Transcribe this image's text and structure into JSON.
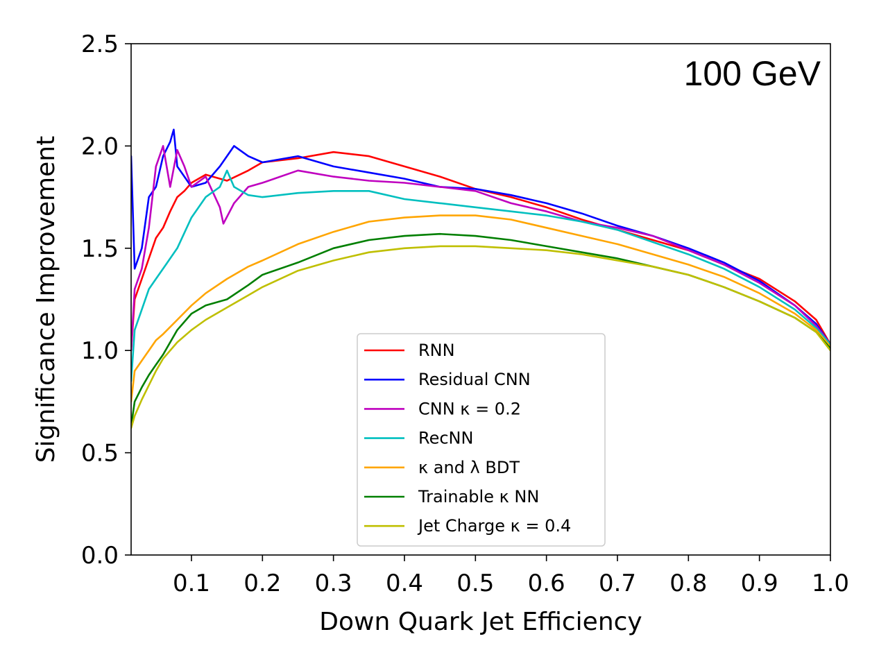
{
  "chart_data": {
    "type": "line",
    "title": "",
    "annotation": "100 GeV",
    "xlabel": "Down Quark Jet Efficiency",
    "ylabel": "Significance Improvement",
    "xlim": [
      0.015,
      1.0
    ],
    "ylim": [
      0.0,
      2.5
    ],
    "xticks": [
      0.1,
      0.2,
      0.3,
      0.4,
      0.5,
      0.6,
      0.7,
      0.8,
      0.9,
      1.0
    ],
    "xtick_labels": [
      "0.1",
      "0.2",
      "0.3",
      "0.4",
      "0.5",
      "0.6",
      "0.7",
      "0.8",
      "0.9",
      "1.0"
    ],
    "yticks": [
      0.0,
      0.5,
      1.0,
      1.5,
      2.0,
      2.5
    ],
    "ytick_labels": [
      "0.0",
      "0.5",
      "1.0",
      "1.5",
      "2.0",
      "2.5"
    ],
    "grid": false,
    "legend_position": "bottom-center",
    "series": [
      {
        "name": "RNN",
        "color": "#ff0000",
        "x": [
          0.015,
          0.02,
          0.03,
          0.04,
          0.05,
          0.06,
          0.07,
          0.08,
          0.09,
          0.1,
          0.12,
          0.15,
          0.18,
          0.2,
          0.25,
          0.3,
          0.35,
          0.4,
          0.45,
          0.5,
          0.55,
          0.6,
          0.65,
          0.7,
          0.75,
          0.8,
          0.85,
          0.9,
          0.95,
          0.98,
          1.0
        ],
        "y": [
          1.0,
          1.25,
          1.35,
          1.45,
          1.55,
          1.6,
          1.68,
          1.75,
          1.78,
          1.82,
          1.86,
          1.83,
          1.88,
          1.92,
          1.94,
          1.97,
          1.95,
          1.9,
          1.85,
          1.79,
          1.75,
          1.7,
          1.64,
          1.59,
          1.54,
          1.49,
          1.42,
          1.35,
          1.24,
          1.15,
          1.03
        ]
      },
      {
        "name": "Residual CNN",
        "color": "#0000ff",
        "x": [
          0.015,
          0.02,
          0.03,
          0.04,
          0.05,
          0.06,
          0.07,
          0.075,
          0.08,
          0.09,
          0.1,
          0.12,
          0.14,
          0.16,
          0.18,
          0.2,
          0.25,
          0.3,
          0.35,
          0.4,
          0.45,
          0.5,
          0.55,
          0.6,
          0.65,
          0.7,
          0.75,
          0.8,
          0.85,
          0.9,
          0.95,
          0.98,
          1.0
        ],
        "y": [
          1.95,
          1.4,
          1.5,
          1.75,
          1.8,
          1.95,
          2.02,
          2.08,
          1.9,
          1.85,
          1.8,
          1.82,
          1.9,
          2.0,
          1.95,
          1.92,
          1.95,
          1.9,
          1.87,
          1.84,
          1.8,
          1.79,
          1.76,
          1.72,
          1.67,
          1.61,
          1.56,
          1.5,
          1.43,
          1.34,
          1.22,
          1.13,
          1.03
        ]
      },
      {
        "name": "CNN $\\kappa = 0.2$",
        "label": "CNN κ = 0.2",
        "color": "#bf00bf",
        "x": [
          0.015,
          0.02,
          0.03,
          0.04,
          0.05,
          0.06,
          0.07,
          0.08,
          0.09,
          0.1,
          0.12,
          0.14,
          0.145,
          0.16,
          0.18,
          0.2,
          0.25,
          0.3,
          0.35,
          0.4,
          0.45,
          0.5,
          0.55,
          0.6,
          0.65,
          0.7,
          0.75,
          0.8,
          0.85,
          0.9,
          0.95,
          0.98,
          1.0
        ],
        "y": [
          1.0,
          1.3,
          1.4,
          1.6,
          1.9,
          2.0,
          1.8,
          1.98,
          1.9,
          1.8,
          1.85,
          1.7,
          1.62,
          1.72,
          1.8,
          1.82,
          1.88,
          1.85,
          1.83,
          1.82,
          1.8,
          1.78,
          1.72,
          1.68,
          1.63,
          1.6,
          1.56,
          1.49,
          1.42,
          1.33,
          1.22,
          1.12,
          1.03
        ]
      },
      {
        "name": "RecNN",
        "color": "#00bfbf",
        "x": [
          0.015,
          0.02,
          0.03,
          0.04,
          0.05,
          0.06,
          0.08,
          0.1,
          0.12,
          0.14,
          0.15,
          0.16,
          0.18,
          0.2,
          0.25,
          0.3,
          0.35,
          0.4,
          0.45,
          0.5,
          0.55,
          0.6,
          0.65,
          0.7,
          0.75,
          0.8,
          0.85,
          0.9,
          0.95,
          0.98,
          1.0
        ],
        "y": [
          0.85,
          1.1,
          1.2,
          1.3,
          1.35,
          1.4,
          1.5,
          1.65,
          1.75,
          1.8,
          1.88,
          1.8,
          1.76,
          1.75,
          1.77,
          1.78,
          1.78,
          1.74,
          1.72,
          1.7,
          1.68,
          1.66,
          1.63,
          1.59,
          1.53,
          1.47,
          1.4,
          1.31,
          1.2,
          1.11,
          1.03
        ]
      },
      {
        "name": "$\\kappa$ and $\\lambda$ BDT",
        "label": "κ and λ BDT",
        "color": "#ffa500",
        "x": [
          0.015,
          0.02,
          0.03,
          0.04,
          0.05,
          0.06,
          0.08,
          0.1,
          0.12,
          0.15,
          0.18,
          0.2,
          0.25,
          0.3,
          0.35,
          0.4,
          0.45,
          0.5,
          0.55,
          0.6,
          0.65,
          0.7,
          0.75,
          0.8,
          0.85,
          0.9,
          0.95,
          0.98,
          1.0
        ],
        "y": [
          0.75,
          0.9,
          0.95,
          1.0,
          1.05,
          1.08,
          1.15,
          1.22,
          1.28,
          1.35,
          1.41,
          1.44,
          1.52,
          1.58,
          1.63,
          1.65,
          1.66,
          1.66,
          1.64,
          1.6,
          1.56,
          1.52,
          1.47,
          1.42,
          1.36,
          1.28,
          1.18,
          1.1,
          1.02
        ]
      },
      {
        "name": "Trainable $\\kappa$ NN",
        "label": "Trainable κ NN",
        "color": "#007f00",
        "x": [
          0.015,
          0.02,
          0.03,
          0.04,
          0.05,
          0.06,
          0.08,
          0.1,
          0.12,
          0.15,
          0.18,
          0.2,
          0.25,
          0.3,
          0.35,
          0.4,
          0.45,
          0.5,
          0.55,
          0.6,
          0.65,
          0.7,
          0.75,
          0.8,
          0.85,
          0.9,
          0.95,
          0.98,
          1.0
        ],
        "y": [
          0.63,
          0.75,
          0.82,
          0.88,
          0.93,
          0.98,
          1.1,
          1.18,
          1.22,
          1.25,
          1.32,
          1.37,
          1.43,
          1.5,
          1.54,
          1.56,
          1.57,
          1.56,
          1.54,
          1.51,
          1.48,
          1.45,
          1.41,
          1.37,
          1.31,
          1.24,
          1.16,
          1.09,
          1.01
        ]
      },
      {
        "name": "Jet Charge $\\kappa$ = 0.4",
        "label": "Jet Charge κ = 0.4",
        "color": "#bfbf00",
        "x": [
          0.015,
          0.02,
          0.03,
          0.04,
          0.05,
          0.06,
          0.08,
          0.1,
          0.12,
          0.15,
          0.18,
          0.2,
          0.25,
          0.3,
          0.35,
          0.4,
          0.45,
          0.5,
          0.55,
          0.6,
          0.65,
          0.7,
          0.75,
          0.8,
          0.85,
          0.9,
          0.95,
          0.98,
          1.0
        ],
        "y": [
          0.62,
          0.68,
          0.76,
          0.83,
          0.9,
          0.96,
          1.04,
          1.1,
          1.15,
          1.21,
          1.27,
          1.31,
          1.39,
          1.44,
          1.48,
          1.5,
          1.51,
          1.51,
          1.5,
          1.49,
          1.47,
          1.44,
          1.41,
          1.37,
          1.31,
          1.24,
          1.16,
          1.09,
          1.0
        ]
      }
    ]
  }
}
